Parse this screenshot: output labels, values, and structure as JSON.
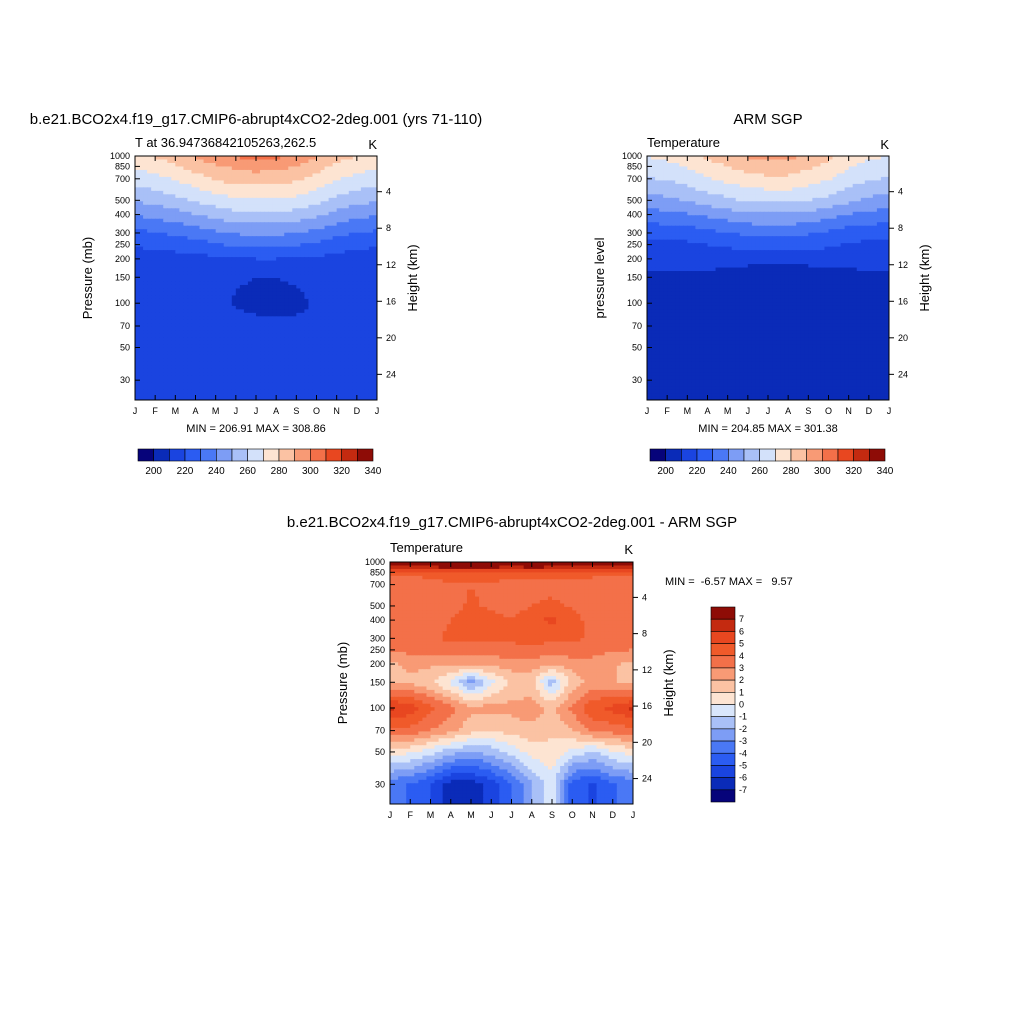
{
  "colors": {
    "abs_palette": [
      "#06037a",
      "#0a2bb8",
      "#1a44e0",
      "#2b5cf2",
      "#4a78f5",
      "#7d9df5",
      "#a9c0f7",
      "#d3e1fa",
      "#fde4d2",
      "#fbc2a3",
      "#f89a75",
      "#f37049",
      "#e84720",
      "#c42a10",
      "#8e0c06"
    ],
    "diff_palette": [
      "#06037a",
      "#0a2bb8",
      "#1a44e0",
      "#2b5cf2",
      "#4a78f5",
      "#7d9df5",
      "#a9c0f7",
      "#d9e6fb",
      "#fde4d2",
      "#fbc2a3",
      "#f89a75",
      "#f37049",
      "#f05a2a",
      "#e84720",
      "#c42a10",
      "#8e0c06"
    ]
  },
  "chart_data": [
    {
      "type": "heatmap",
      "title": "b.e21.BCO2x4.f19_g17.CMIP6-abrupt4xCO2-2deg.001 (yrs 71-110)",
      "left_string": "T at 36.94736842105263,262.5",
      "right_string": "K",
      "ylabel": "Pressure (mb)",
      "ylabel_right": "Height (km)",
      "x_ticks": [
        "J",
        "F",
        "M",
        "A",
        "M",
        "J",
        "J",
        "A",
        "S",
        "O",
        "N",
        "D",
        "J"
      ],
      "y_ticks": [
        "30",
        "50",
        "70",
        "100",
        "150",
        "200",
        "250",
        "300",
        "400",
        "500",
        "700",
        "850",
        "1000"
      ],
      "height_ticks": [
        "24",
        "20",
        "16",
        "12",
        "8",
        "4"
      ],
      "ylim": [
        1000,
        22
      ],
      "minmax": "MIN = 206.91 MAX = 308.86",
      "colorbar_labels": [
        "200",
        "220",
        "240",
        "260",
        "280",
        "300",
        "320",
        "340"
      ],
      "levels": [
        195,
        200,
        205,
        210,
        215,
        220,
        225,
        230,
        235,
        240,
        245,
        250,
        255,
        260,
        265,
        270,
        275,
        280,
        285,
        290,
        295,
        300,
        305,
        310
      ],
      "values": {
        "months": [
          1,
          2,
          3,
          4,
          5,
          6,
          7,
          8,
          9,
          10,
          11,
          12,
          13
        ],
        "pressures": [
          1000,
          850,
          700,
          500,
          400,
          300,
          250,
          200,
          150,
          100,
          70,
          50,
          30
        ],
        "T": [
          [
            283,
            286,
            291,
            296,
            302,
            306,
            308,
            307,
            303,
            296,
            289,
            285,
            283
          ],
          [
            276,
            279,
            284,
            289,
            294,
            297,
            299,
            298,
            295,
            289,
            283,
            279,
            276
          ],
          [
            270,
            272,
            276,
            281,
            286,
            289,
            290,
            290,
            287,
            282,
            276,
            272,
            270
          ],
          [
            256,
            258,
            262,
            266,
            270,
            273,
            274,
            274,
            272,
            268,
            262,
            258,
            256
          ],
          [
            246,
            248,
            251,
            255,
            259,
            262,
            263,
            263,
            261,
            257,
            252,
            248,
            246
          ],
          [
            233,
            234,
            237,
            240,
            243,
            246,
            247,
            247,
            245,
            242,
            238,
            235,
            233
          ],
          [
            226,
            227,
            229,
            231,
            234,
            237,
            238,
            238,
            236,
            233,
            230,
            227,
            226
          ],
          [
            221,
            221,
            221,
            222,
            223,
            224,
            225,
            225,
            224,
            223,
            222,
            221,
            221
          ],
          [
            219,
            219,
            219,
            219,
            218,
            216,
            215,
            215,
            216,
            218,
            219,
            219,
            219
          ],
          [
            219,
            219,
            219,
            219,
            218,
            214,
            213,
            213,
            213,
            216,
            219,
            219,
            219
          ],
          [
            219,
            219,
            219,
            219,
            219,
            218,
            217,
            217,
            217,
            216,
            219,
            219,
            219
          ],
          [
            219,
            219,
            219,
            219,
            219,
            219,
            219,
            219,
            219,
            219,
            219,
            219,
            219
          ],
          [
            219,
            219,
            219,
            219,
            219,
            219,
            219,
            219,
            219,
            219,
            219,
            219,
            219
          ]
        ]
      }
    },
    {
      "type": "heatmap",
      "title": "ARM SGP",
      "left_string": "Temperature",
      "right_string": "K",
      "ylabel": "pressure level",
      "ylabel_right": "Height (km)",
      "x_ticks": [
        "J",
        "F",
        "M",
        "A",
        "M",
        "J",
        "J",
        "A",
        "S",
        "O",
        "N",
        "D",
        "J"
      ],
      "y_ticks": [
        "30",
        "50",
        "70",
        "100",
        "150",
        "200",
        "250",
        "300",
        "400",
        "500",
        "700",
        "850",
        "1000"
      ],
      "height_ticks": [
        "24",
        "20",
        "16",
        "12",
        "8",
        "4"
      ],
      "ylim": [
        1000,
        22
      ],
      "minmax": "MIN = 204.85 MAX = 301.38",
      "colorbar_labels": [
        "200",
        "220",
        "240",
        "260",
        "280",
        "300",
        "320",
        "340"
      ],
      "levels": [
        195,
        200,
        205,
        210,
        215,
        220,
        225,
        230,
        235,
        240,
        245,
        250,
        255,
        260,
        265,
        270,
        275,
        280,
        285,
        290,
        295,
        300,
        305,
        310
      ],
      "values": {
        "months": [
          1,
          2,
          3,
          4,
          5,
          6,
          7,
          8,
          9,
          10,
          11,
          12,
          13
        ],
        "pressures": [
          1000,
          850,
          700,
          500,
          400,
          300,
          250,
          200,
          150,
          100,
          70,
          50,
          30
        ],
        "T": [
          [
            275,
            278,
            282,
            287,
            292,
            296,
            298,
            298,
            294,
            288,
            281,
            277,
            275
          ],
          [
            270,
            272,
            276,
            281,
            285,
            289,
            291,
            290,
            287,
            282,
            276,
            272,
            270
          ],
          [
            264,
            266,
            269,
            274,
            278,
            281,
            283,
            283,
            280,
            276,
            270,
            266,
            264
          ],
          [
            251,
            253,
            256,
            260,
            263,
            266,
            267,
            267,
            265,
            262,
            257,
            253,
            251
          ],
          [
            241,
            242,
            244,
            247,
            250,
            253,
            254,
            254,
            252,
            249,
            245,
            242,
            241
          ],
          [
            228,
            229,
            230,
            232,
            235,
            237,
            238,
            238,
            236,
            233,
            230,
            229,
            228
          ],
          [
            222,
            222,
            223,
            225,
            227,
            229,
            230,
            230,
            229,
            227,
            224,
            223,
            222
          ],
          [
            217,
            217,
            217,
            218,
            218,
            218,
            218,
            218,
            218,
            218,
            217,
            217,
            217
          ],
          [
            214,
            214,
            214,
            213,
            212,
            210,
            210,
            210,
            210,
            211,
            213,
            214,
            214
          ],
          [
            210,
            212,
            213,
            213,
            211,
            210,
            209,
            209,
            209,
            210,
            212,
            213,
            210
          ],
          [
            210,
            214,
            214,
            214,
            213,
            213,
            212,
            212,
            212,
            212,
            212,
            214,
            210
          ],
          [
            214,
            214,
            214,
            214,
            214,
            214,
            214,
            214,
            214,
            214,
            214,
            214,
            214
          ],
          [
            214,
            214,
            214,
            213,
            212,
            211,
            210,
            211,
            212,
            213,
            214,
            214,
            214
          ]
        ]
      }
    },
    {
      "type": "heatmap",
      "title": "b.e21.BCO2x4.f19_g17.CMIP6-abrupt4xCO2-2deg.001 - ARM SGP",
      "left_string": "Temperature",
      "right_string": "K",
      "ylabel": "Pressure (mb)",
      "ylabel_right": "Height (km)",
      "x_ticks": [
        "J",
        "F",
        "M",
        "A",
        "M",
        "J",
        "J",
        "A",
        "S",
        "O",
        "N",
        "D",
        "J"
      ],
      "y_ticks": [
        "30",
        "50",
        "70",
        "100",
        "150",
        "200",
        "250",
        "300",
        "400",
        "500",
        "700",
        "850",
        "1000"
      ],
      "height_ticks": [
        "24",
        "20",
        "16",
        "12",
        "8",
        "4"
      ],
      "ylim": [
        1000,
        22
      ],
      "minmax": "MIN =  -6.57 MAX =   9.57",
      "colorbar_labels": [
        "7",
        "6",
        "5",
        "4",
        "3",
        "2",
        "1",
        "0",
        "-1",
        "-2",
        "-3",
        "-4",
        "-5",
        "-6",
        "-7"
      ],
      "levels": [
        -7,
        -6,
        -5,
        -4,
        -3,
        -2,
        -1,
        0,
        1,
        2,
        3,
        4,
        5,
        6,
        7
      ],
      "values": {
        "months": [
          1,
          2,
          3,
          4,
          5,
          6,
          7,
          8,
          9,
          10,
          11,
          12,
          13
        ],
        "pressures": [
          1000,
          850,
          700,
          500,
          400,
          300,
          250,
          200,
          150,
          100,
          70,
          50,
          30
        ],
        "T": [
          [
            8.5,
            8.5,
            9,
            9.3,
            9.5,
            9.4,
            9.2,
            9.5,
            9.3,
            9,
            8.7,
            8.5,
            8.5
          ],
          [
            4.5,
            4.5,
            4.8,
            5,
            5,
            4.8,
            4.5,
            4.7,
            4.6,
            4.5,
            4.5,
            4.5,
            4.5
          ],
          [
            3,
            3,
            3.2,
            3.8,
            4,
            3.8,
            3.5,
            3.6,
            3.7,
            3.6,
            3.3,
            3,
            3
          ],
          [
            3,
            3,
            3.2,
            3.8,
            4.1,
            3.9,
            3.6,
            4,
            4.2,
            3.9,
            3.4,
            3,
            3
          ],
          [
            3,
            3.1,
            3.4,
            4,
            4.3,
            4.2,
            4.1,
            4.6,
            5.3,
            4.4,
            3.6,
            3.1,
            3
          ],
          [
            3.3,
            3.4,
            3.8,
            4.2,
            4.3,
            4.2,
            4.2,
            4.3,
            4.3,
            4.2,
            3.8,
            3.4,
            3.3
          ],
          [
            3,
            3.4,
            3.5,
            3.6,
            3.6,
            3.6,
            3.7,
            3.7,
            3.5,
            3.6,
            3.5,
            3.1,
            3
          ],
          [
            1.8,
            2.3,
            2.2,
            2.2,
            2.2,
            2.3,
            2.5,
            2.5,
            2.2,
            2.5,
            2.6,
            2.1,
            1.8
          ],
          [
            1.6,
            1.8,
            1.2,
            -0.2,
            -2.5,
            -0.3,
            1.2,
            1.2,
            -1.6,
            1.4,
            2.3,
            2.1,
            1.6
          ],
          [
            6.2,
            5.6,
            4.3,
            3.3,
            2.3,
            2.4,
            2.3,
            2.6,
            1.7,
            3.3,
            4.8,
            5.3,
            6.2
          ],
          [
            3.6,
            3.6,
            3,
            2.3,
            1.4,
            1,
            1.4,
            1.7,
            1.2,
            1.9,
            3.2,
            3.4,
            3.6
          ],
          [
            0.4,
            0.2,
            -0.6,
            -1.6,
            -2.1,
            -1.6,
            -0.6,
            0.4,
            0.7,
            -0.3,
            -1.1,
            0,
            0.4
          ],
          [
            -3.5,
            -4.1,
            -5,
            -6.5,
            -6.6,
            -5.6,
            -4.1,
            -2.1,
            -0.4,
            -4.6,
            -5.1,
            -4.1,
            -3.5
          ]
        ]
      }
    }
  ]
}
